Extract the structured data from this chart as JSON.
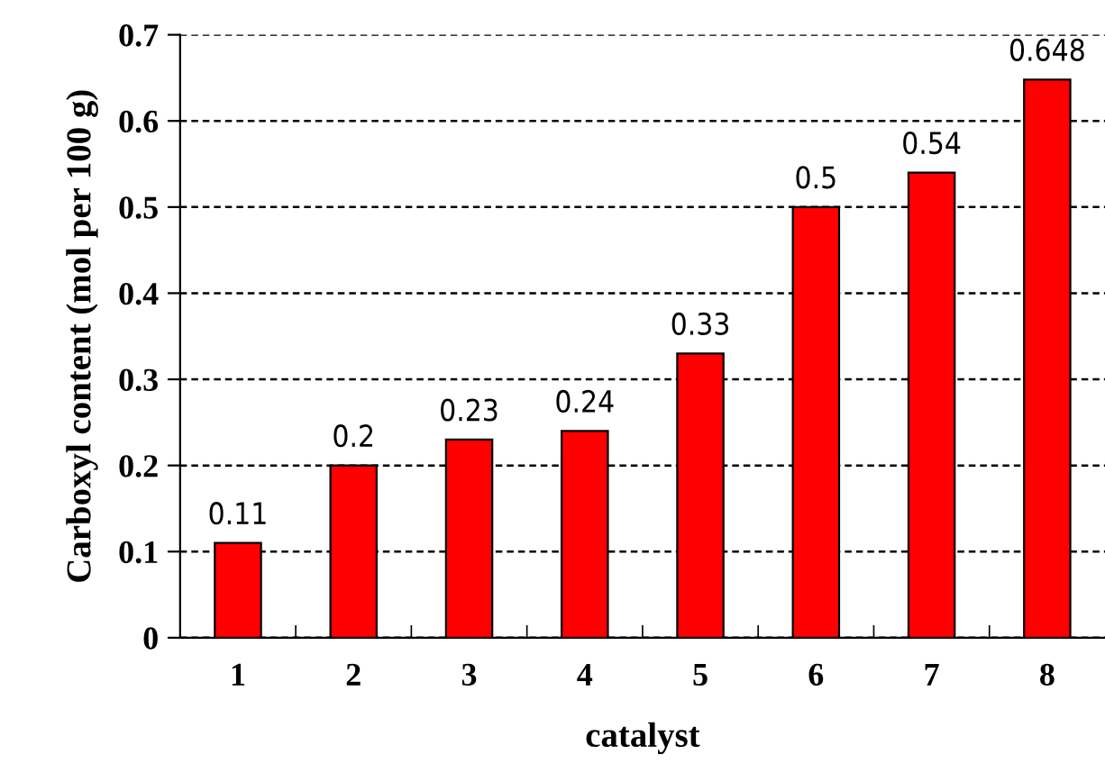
{
  "chart_data": {
    "type": "bar",
    "xlabel": "catalyst",
    "ylabel": "Carboxyl content (mol per 100 g)",
    "categories": [
      "1",
      "2",
      "3",
      "4",
      "5",
      "6",
      "7",
      "8"
    ],
    "values": [
      0.11,
      0.2,
      0.23,
      0.24,
      0.33,
      0.5,
      0.54,
      0.648
    ],
    "color": "#ff0000",
    "ylim": [
      0,
      0.7
    ],
    "yticks": [
      {
        "value": 0,
        "label": "0"
      },
      0.1,
      0.2,
      0.3,
      0.4,
      0.5,
      0.6,
      0.7
    ],
    "grid": "y",
    "data_labels": true
  }
}
